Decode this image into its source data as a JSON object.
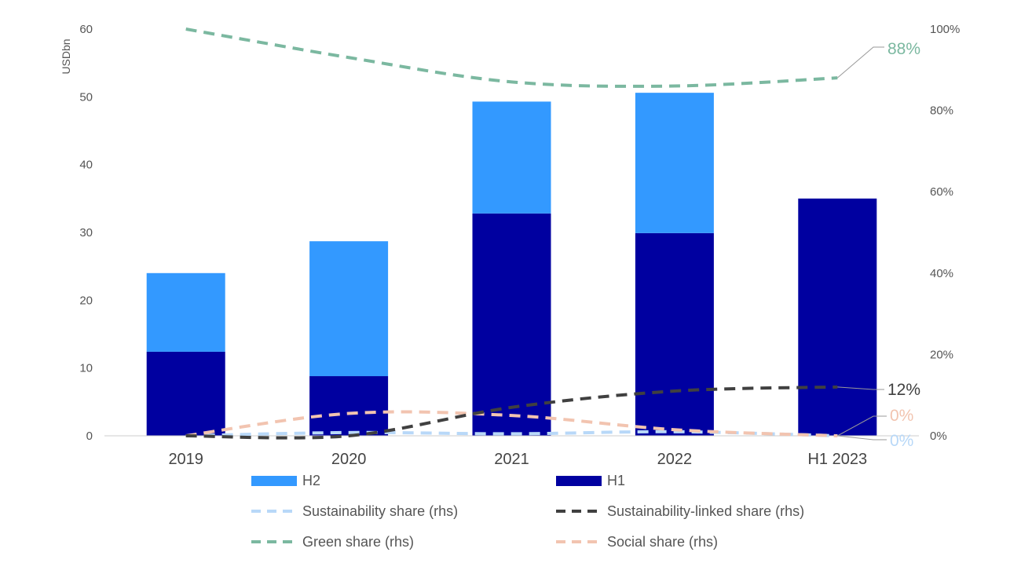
{
  "chart_data": {
    "type": "bar",
    "stacked": true,
    "categories": [
      "2019",
      "2020",
      "2021",
      "2022",
      "H1 2023"
    ],
    "ylabel": "USDbn",
    "ylim": [
      0,
      60
    ],
    "yticks": [
      0,
      10,
      20,
      30,
      40,
      50,
      60
    ],
    "y2lim": [
      0,
      100
    ],
    "y2ticks": [
      "0%",
      "20%",
      "40%",
      "60%",
      "80%",
      "100%"
    ],
    "y2tick_values": [
      0,
      20,
      40,
      60,
      80,
      100
    ],
    "bar_series": [
      {
        "key": "h1",
        "name": "H1",
        "color": "#0000A0",
        "values": [
          12.4,
          8.8,
          32.8,
          29.9,
          35.0
        ]
      },
      {
        "key": "h2",
        "name": "H2",
        "color": "#3399FF",
        "values": [
          11.6,
          19.9,
          16.5,
          20.7,
          0
        ]
      }
    ],
    "line_series": [
      {
        "key": "green",
        "name": "Green share (rhs)",
        "color": "#7BB8A0",
        "values": [
          100,
          93,
          87,
          86,
          88
        ],
        "end_label": "88%"
      },
      {
        "key": "sustainability_linked",
        "name": "Sustainability-linked share (rhs)",
        "color": "#404040",
        "values": [
          0,
          0,
          7,
          11,
          12
        ],
        "end_label": "12%"
      },
      {
        "key": "social",
        "name": "Social share (rhs)",
        "color": "#F2C4B0",
        "values": [
          0,
          5.5,
          5,
          1.5,
          0
        ],
        "end_label": "0%"
      },
      {
        "key": "sustainability",
        "name": "Sustainability share (rhs)",
        "color": "#B8D8F8",
        "values": [
          0,
          0.8,
          0.5,
          1.0,
          0
        ],
        "end_label": "0%"
      }
    ],
    "legend": {
      "position": "bottom",
      "rows": [
        [
          "H2",
          "H1"
        ],
        [
          "Sustainability share (rhs)",
          "Sustainability-linked share (rhs)"
        ],
        [
          "Green share (rhs)",
          "Social share (rhs)"
        ]
      ]
    },
    "grid": false
  }
}
